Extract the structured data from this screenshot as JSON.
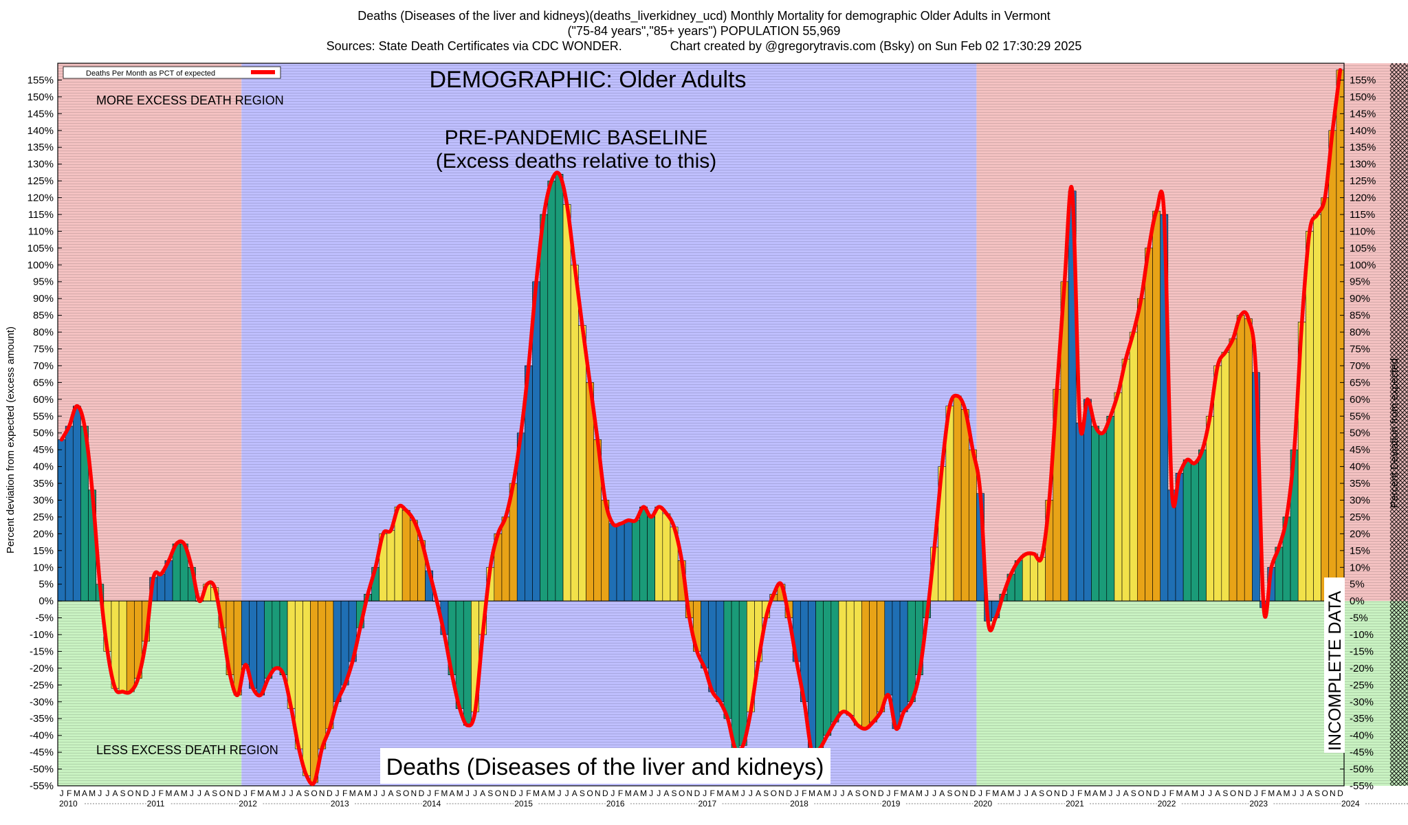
{
  "header": {
    "line1": "Deaths (Diseases of the liver and kidneys)(deaths_liverkidney_ucd) Monthly Mortality for demographic Older Adults in Vermont",
    "line2": "(\"75-84 years\",\"85+ years\") POPULATION 55,969",
    "line3": "Sources: State Death Certificates via CDC WONDER.              Chart created by @gregorytravis.com (Bsky) on Sun Feb 02 17:30:29 2025"
  },
  "chart_data": {
    "type": "bar",
    "title": "DEMOGRAPHIC: Older Adults",
    "subtitle": "Deaths (Diseases of the liver and kidneys)",
    "ylabel_left": "Percent deviation from expected (excess amount)",
    "ylabel_right": "Percent Deviation from expected",
    "ylim": [
      -55,
      160
    ],
    "ytick_step": 5,
    "ytick_format": "%",
    "x_start": "2010-01",
    "x_end": "2024-12",
    "month_letters": [
      "J",
      "F",
      "M",
      "A",
      "M",
      "J",
      "J",
      "A",
      "S",
      "O",
      "N",
      "D"
    ],
    "years": [
      "2010",
      "2011",
      "2012",
      "2013",
      "2014",
      "2015",
      "2016",
      "2017",
      "2018",
      "2019",
      "2020",
      "2021",
      "2022",
      "2023",
      "2024"
    ],
    "legend": {
      "label": "Deaths Per Month as PCT of expected",
      "placement": "top-left",
      "color": "#ff0000"
    },
    "regions": [
      {
        "label": "MORE EXCESS DEATH REGION",
        "from": "2010-01",
        "to": "2011-12",
        "sign": "positive",
        "color": "#f4c2c2"
      },
      {
        "label": "LESS EXCESS DEATH REGION",
        "from": "2010-01",
        "to": "2011-12",
        "sign": "negative",
        "color": "#c9f2c2"
      },
      {
        "label": "PRE-PANDEMIC BASELINE\n(Excess deaths relative to this)",
        "from": "2012-01",
        "to": "2019-12",
        "color": "#bfbfff"
      },
      {
        "label": "",
        "from": "2020-01",
        "to": "2024-12",
        "sign": "positive",
        "color": "#f4c2c2"
      },
      {
        "label": "",
        "from": "2020-01",
        "to": "2024-12",
        "sign": "negative",
        "color": "#c9f2c2"
      },
      {
        "label": "INCOMPLETE DATA",
        "from": "2024-07",
        "to": "2024-12",
        "color": "#000000"
      }
    ],
    "baseline_label": "PRE-PANDEMIC BASELINE",
    "baseline_sublabel": "(Excess deaths relative to this)",
    "incomplete_label": "INCOMPLETE DATA",
    "bar_colors": [
      "#1f6fb4",
      "#1a9b78",
      "#f2e14a",
      "#e8a317"
    ],
    "series": [
      {
        "name": "Deaths Per Month as PCT of expected",
        "values": [
          48,
          52,
          58,
          52,
          33,
          5,
          -15,
          -26,
          -27,
          -27,
          -23,
          -12,
          7,
          8,
          12,
          17,
          17,
          10,
          0,
          5,
          4,
          -8,
          -22,
          -28,
          -19,
          -26,
          -28,
          -23,
          -20,
          -22,
          -32,
          -44,
          -52,
          -54,
          -44,
          -38,
          -30,
          -25,
          -18,
          -8,
          2,
          10,
          20,
          21,
          28,
          27,
          24,
          18,
          9,
          0,
          -10,
          -22,
          -32,
          -37,
          -33,
          -10,
          10,
          20,
          25,
          35,
          50,
          70,
          95,
          115,
          125,
          127,
          118,
          100,
          82,
          65,
          48,
          30,
          23,
          23,
          24,
          24,
          28,
          25,
          28,
          26,
          22,
          12,
          -5,
          -15,
          -20,
          -27,
          -30,
          -35,
          -44,
          -43,
          -33,
          -18,
          -5,
          2,
          5,
          -5,
          -18,
          -30,
          -45,
          -44,
          -40,
          -36,
          -33,
          -34,
          -37,
          -38,
          -36,
          -33,
          -28,
          -38,
          -33,
          -30,
          -22,
          -5,
          16,
          40,
          58,
          61,
          57,
          45,
          32,
          -6,
          -5,
          2,
          8,
          12,
          14,
          14,
          13,
          30,
          63,
          95,
          122,
          53,
          60,
          52,
          50,
          55,
          62,
          72,
          80,
          90,
          105,
          116,
          115,
          33,
          38,
          42,
          41,
          45,
          55,
          70,
          74,
          78,
          85,
          84,
          68,
          -2,
          10,
          16,
          25,
          45,
          83,
          110,
          115,
          120,
          140,
          158
        ]
      }
    ]
  }
}
